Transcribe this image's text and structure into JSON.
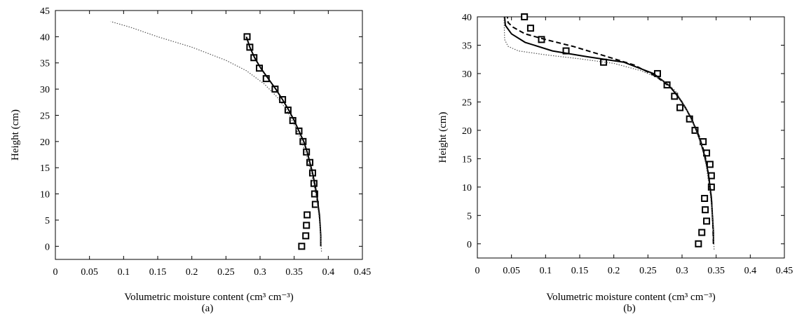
{
  "chart_data": [
    {
      "type": "scatter",
      "caption": "(a)",
      "xlabel": "Volumetric moisture content (cm³ cm⁻³)",
      "ylabel": "Height (cm)",
      "xlim": [
        0,
        0.45
      ],
      "ylim": [
        -2.5,
        45
      ],
      "xticks": [
        "0",
        "0.05",
        "0.1",
        "0.15",
        "0.2",
        "0.25",
        "0.3",
        "0.35",
        "0.4",
        "0.45"
      ],
      "yticks": [
        "0",
        "5",
        "10",
        "15",
        "20",
        "25",
        "30",
        "35",
        "40",
        "45"
      ],
      "grid": false,
      "series": [
        {
          "style": "markers-square",
          "points": [
            [
              0.361,
              0
            ],
            [
              0.367,
              2
            ],
            [
              0.368,
              4
            ],
            [
              0.369,
              6
            ],
            [
              0.381,
              8
            ],
            [
              0.38,
              10
            ],
            [
              0.379,
              12
            ],
            [
              0.377,
              14
            ],
            [
              0.373,
              16
            ],
            [
              0.368,
              18
            ],
            [
              0.363,
              20
            ],
            [
              0.357,
              22
            ],
            [
              0.348,
              24
            ],
            [
              0.341,
              26
            ],
            [
              0.333,
              28
            ],
            [
              0.322,
              30
            ],
            [
              0.309,
              32
            ],
            [
              0.299,
              34
            ],
            [
              0.291,
              36
            ],
            [
              0.285,
              38
            ],
            [
              0.281,
              40
            ]
          ]
        },
        {
          "style": "solid",
          "points": [
            [
              0.389,
              0
            ],
            [
              0.389,
              2
            ],
            [
              0.388,
              4
            ],
            [
              0.387,
              6
            ],
            [
              0.385,
              8
            ],
            [
              0.383,
              10
            ],
            [
              0.38,
              12
            ],
            [
              0.377,
              14
            ],
            [
              0.373,
              16
            ],
            [
              0.369,
              18
            ],
            [
              0.364,
              20
            ],
            [
              0.357,
              22
            ],
            [
              0.35,
              24
            ],
            [
              0.342,
              26
            ],
            [
              0.333,
              28
            ],
            [
              0.323,
              30
            ],
            [
              0.312,
              32
            ],
            [
              0.301,
              34
            ],
            [
              0.292,
              36
            ],
            [
              0.285,
              38
            ],
            [
              0.28,
              40
            ]
          ]
        },
        {
          "style": "dotted",
          "points": [
            [
              0.39,
              -1
            ],
            [
              0.389,
              2
            ],
            [
              0.387,
              5
            ],
            [
              0.384,
              8
            ],
            [
              0.38,
              11
            ],
            [
              0.375,
              14
            ],
            [
              0.369,
              17
            ],
            [
              0.361,
              20
            ],
            [
              0.351,
              23
            ],
            [
              0.339,
              26
            ],
            [
              0.325,
              28.5
            ],
            [
              0.306,
              31
            ],
            [
              0.28,
              33.5
            ],
            [
              0.25,
              35.5
            ],
            [
              0.2,
              38
            ],
            [
              0.15,
              40
            ],
            [
              0.11,
              41.8
            ],
            [
              0.081,
              42.9
            ]
          ]
        }
      ]
    },
    {
      "type": "scatter",
      "caption": "(b)",
      "xlabel": "Volumetric moisture content (cm³ cm⁻³)",
      "ylabel": "Height (cm)",
      "xlim": [
        0,
        0.45
      ],
      "ylim": [
        -2.5,
        40
      ],
      "xticks": [
        "0",
        "0.05",
        "0.1",
        "0.15",
        "0.2",
        "0.25",
        "0.3",
        "0.35",
        "0.4",
        "0.45"
      ],
      "yticks": [
        "0",
        "5",
        "10",
        "15",
        "20",
        "25",
        "30",
        "35",
        "40"
      ],
      "grid": false,
      "series": [
        {
          "style": "markers-square",
          "points": [
            [
              0.324,
              0
            ],
            [
              0.329,
              2
            ],
            [
              0.336,
              4
            ],
            [
              0.334,
              6
            ],
            [
              0.333,
              8
            ],
            [
              0.343,
              10
            ],
            [
              0.343,
              12
            ],
            [
              0.341,
              14
            ],
            [
              0.336,
              16
            ],
            [
              0.331,
              18
            ],
            [
              0.319,
              20
            ],
            [
              0.311,
              22
            ],
            [
              0.297,
              24
            ],
            [
              0.289,
              26
            ],
            [
              0.278,
              28
            ],
            [
              0.264,
              30
            ],
            [
              0.185,
              32
            ],
            [
              0.13,
              34
            ],
            [
              0.094,
              36
            ],
            [
              0.078,
              38
            ],
            [
              0.069,
              40
            ]
          ]
        },
        {
          "style": "solid",
          "points": [
            [
              0.346,
              0
            ],
            [
              0.346,
              2
            ],
            [
              0.345,
              4
            ],
            [
              0.344,
              6
            ],
            [
              0.343,
              8
            ],
            [
              0.341,
              10
            ],
            [
              0.339,
              12
            ],
            [
              0.336,
              14
            ],
            [
              0.332,
              16
            ],
            [
              0.327,
              18
            ],
            [
              0.321,
              20
            ],
            [
              0.314,
              22
            ],
            [
              0.305,
              24
            ],
            [
              0.294,
              26
            ],
            [
              0.28,
              28
            ],
            [
              0.258,
              30
            ],
            [
              0.215,
              32
            ],
            [
              0.16,
              33
            ],
            [
              0.11,
              34
            ],
            [
              0.07,
              35.5
            ],
            [
              0.05,
              37
            ],
            [
              0.041,
              38.5
            ],
            [
              0.04,
              40
            ]
          ]
        },
        {
          "style": "dashed",
          "points": [
            [
              0.346,
              0
            ],
            [
              0.345,
              4
            ],
            [
              0.343,
              8
            ],
            [
              0.339,
              12
            ],
            [
              0.333,
              16
            ],
            [
              0.325,
              19
            ],
            [
              0.314,
              22
            ],
            [
              0.3,
              25
            ],
            [
              0.284,
              27.5
            ],
            [
              0.262,
              29.5
            ],
            [
              0.23,
              31.5
            ],
            [
              0.19,
              33
            ],
            [
              0.14,
              34.8
            ],
            [
              0.1,
              36
            ],
            [
              0.07,
              37
            ],
            [
              0.052,
              38.2
            ],
            [
              0.045,
              39
            ],
            [
              0.044,
              40
            ]
          ]
        },
        {
          "style": "dotted",
          "points": [
            [
              0.347,
              -1
            ],
            [
              0.346,
              2
            ],
            [
              0.344,
              6
            ],
            [
              0.34,
              10
            ],
            [
              0.335,
              14
            ],
            [
              0.327,
              18
            ],
            [
              0.317,
              21
            ],
            [
              0.305,
              24
            ],
            [
              0.29,
              27
            ],
            [
              0.27,
              29
            ],
            [
              0.24,
              30.5
            ],
            [
              0.2,
              31.8
            ],
            [
              0.15,
              32.6
            ],
            [
              0.1,
              33.3
            ],
            [
              0.06,
              34
            ],
            [
              0.045,
              34.8
            ],
            [
              0.04,
              36
            ],
            [
              0.039,
              40
            ]
          ]
        }
      ]
    }
  ]
}
